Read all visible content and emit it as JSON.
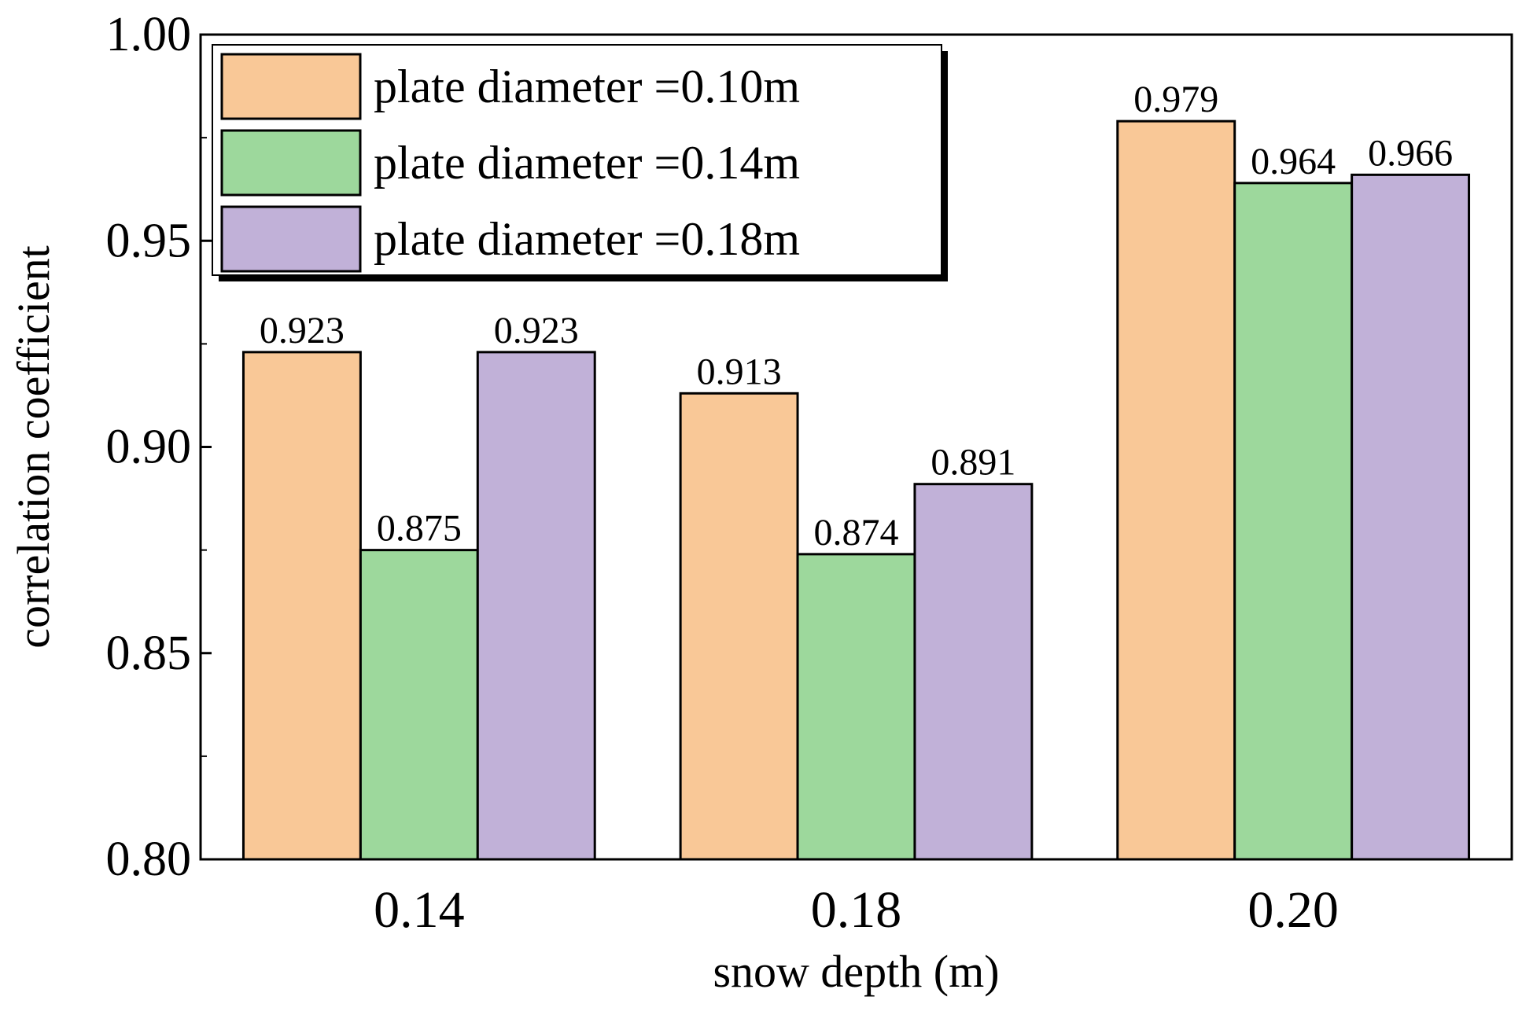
{
  "chart_data": {
    "type": "bar",
    "title": "",
    "xlabel": "snow depth (m)",
    "ylabel": "correlation coefficient",
    "categories": [
      "0.14",
      "0.18",
      "0.20"
    ],
    "ylim": [
      0.8,
      1.0
    ],
    "yticks": [
      "0.80",
      "0.85",
      "0.90",
      "0.95",
      "1.00"
    ],
    "legend_position": "top-left",
    "series": [
      {
        "name": "plate diameter =0.10m",
        "color": "#f9c897",
        "values": [
          0.923,
          0.913,
          0.979
        ],
        "labels": [
          "0.923",
          "0.913",
          "0.979"
        ]
      },
      {
        "name": "plate diameter =0.14m",
        "color": "#9dd89c",
        "values": [
          0.875,
          0.874,
          0.964
        ],
        "labels": [
          "0.875",
          "0.874",
          "0.964"
        ]
      },
      {
        "name": "plate diameter =0.18m",
        "color": "#c1b1d8",
        "values": [
          0.923,
          0.891,
          0.966
        ],
        "labels": [
          "0.923",
          "0.891",
          "0.966"
        ]
      }
    ]
  }
}
